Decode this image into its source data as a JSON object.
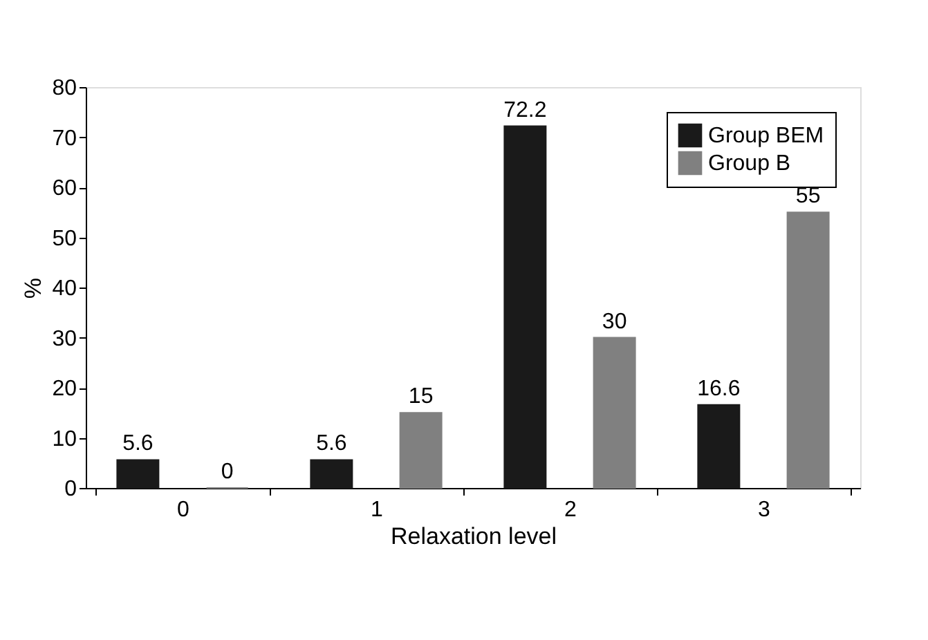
{
  "chart_data": {
    "type": "bar",
    "xlabel": "Relaxation level",
    "ylabel": "%",
    "categories": [
      "0",
      "1",
      "2",
      "3"
    ],
    "series": [
      {
        "name": "Group BEM",
        "color": "#1a1a1a",
        "values": [
          5.6,
          5.6,
          72.2,
          16.6
        ]
      },
      {
        "name": "Group B",
        "color": "#808080",
        "values": [
          0,
          15,
          30,
          55
        ]
      }
    ],
    "ylim": [
      0,
      80
    ],
    "yticks": [
      0,
      10,
      20,
      30,
      40,
      50,
      60,
      70,
      80
    ],
    "grid": false,
    "legend": "top right",
    "data_labels": true
  }
}
